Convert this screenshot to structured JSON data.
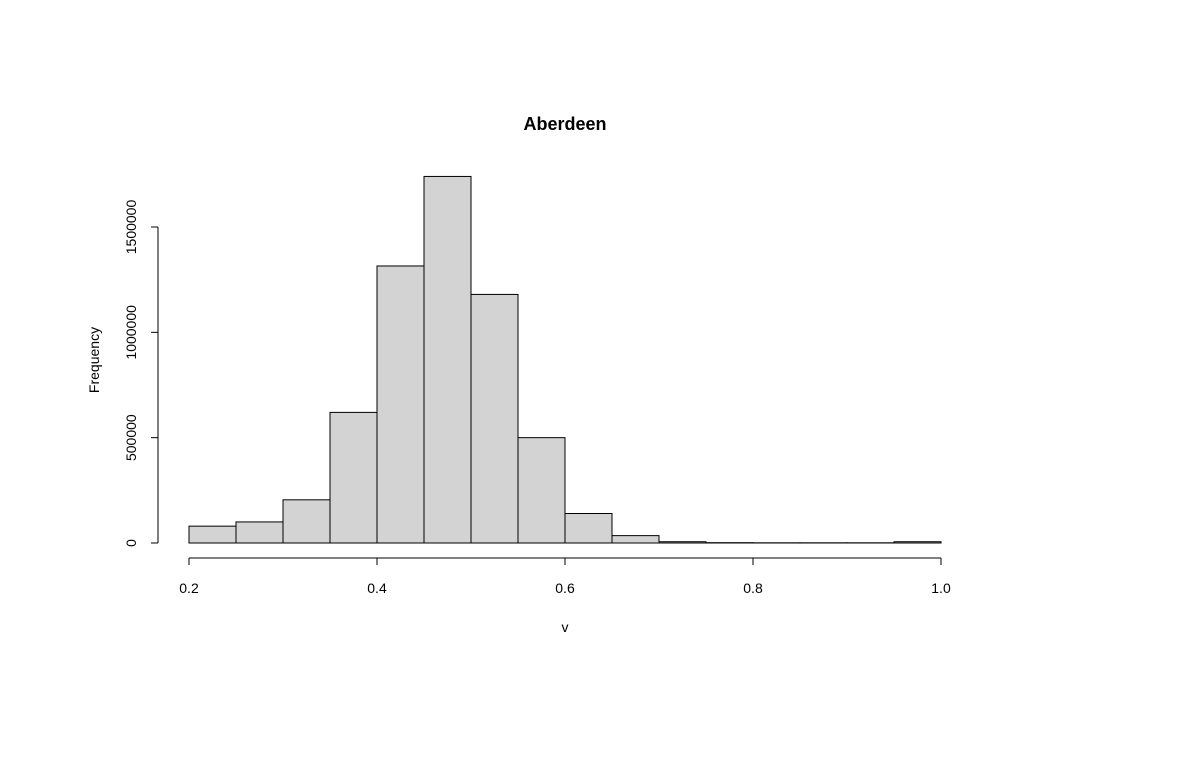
{
  "chart_data": {
    "type": "bar",
    "title": "Aberdeen",
    "xlabel": "v",
    "ylabel": "Frequency",
    "bins": [
      {
        "x0": 0.2,
        "x1": 0.25,
        "value": 80000
      },
      {
        "x0": 0.25,
        "x1": 0.3,
        "value": 100000
      },
      {
        "x0": 0.3,
        "x1": 0.35,
        "value": 205000
      },
      {
        "x0": 0.35,
        "x1": 0.4,
        "value": 620000
      },
      {
        "x0": 0.4,
        "x1": 0.45,
        "value": 1315000
      },
      {
        "x0": 0.45,
        "x1": 0.5,
        "value": 1740000
      },
      {
        "x0": 0.5,
        "x1": 0.55,
        "value": 1180000
      },
      {
        "x0": 0.55,
        "x1": 0.6,
        "value": 500000
      },
      {
        "x0": 0.6,
        "x1": 0.65,
        "value": 140000
      },
      {
        "x0": 0.65,
        "x1": 0.7,
        "value": 35000
      },
      {
        "x0": 0.7,
        "x1": 0.75,
        "value": 6000
      },
      {
        "x0": 0.75,
        "x1": 0.8,
        "value": 1500
      },
      {
        "x0": 0.8,
        "x1": 0.85,
        "value": 1000
      },
      {
        "x0": 0.85,
        "x1": 0.9,
        "value": 1000
      },
      {
        "x0": 0.9,
        "x1": 0.95,
        "value": 1000
      },
      {
        "x0": 0.95,
        "x1": 1.0,
        "value": 6000
      }
    ],
    "xlim": [
      0.2,
      1.0
    ],
    "ylim": [
      0,
      1500000
    ],
    "xticks": [
      0.2,
      0.4,
      0.6,
      0.8,
      1.0
    ],
    "xtick_labels": [
      "0.2",
      "0.4",
      "0.6",
      "0.8",
      "1.0"
    ],
    "yticks": [
      0,
      500000,
      1000000,
      1500000
    ],
    "ytick_labels": [
      "0",
      "500000",
      "1000000",
      "1500000"
    ],
    "grid": false,
    "bar_color": "#d3d3d3",
    "edge_color": "#000000"
  }
}
